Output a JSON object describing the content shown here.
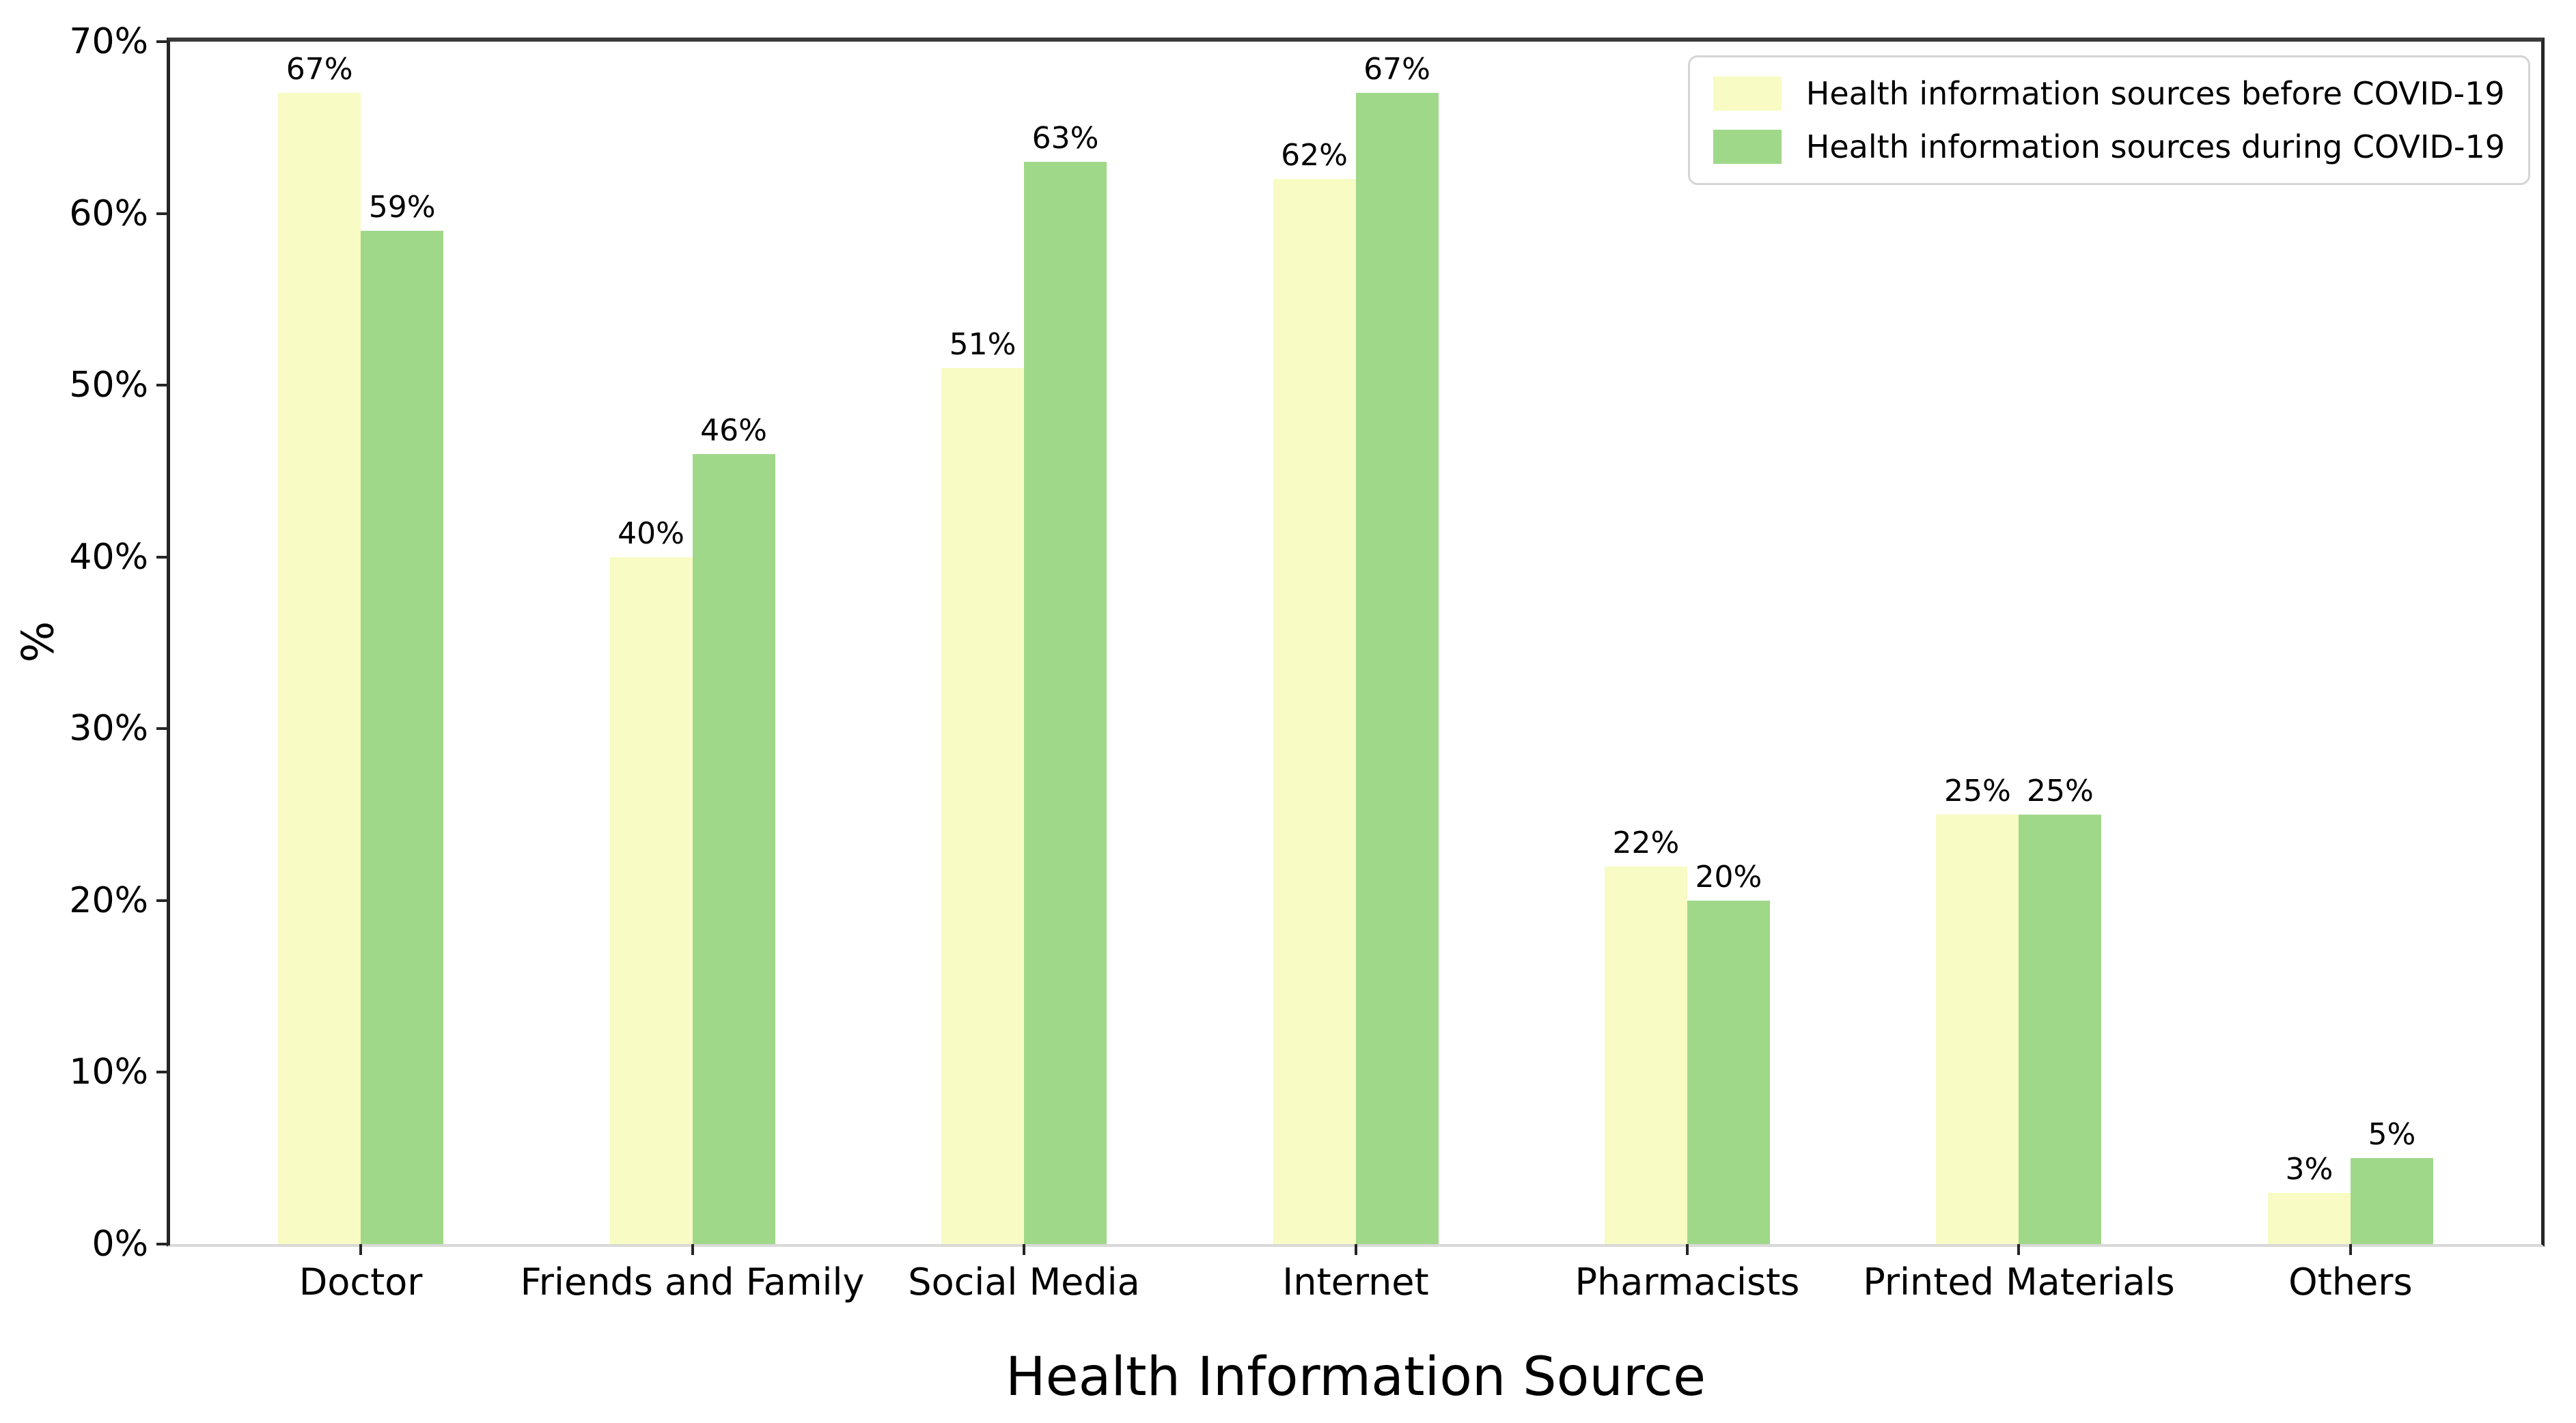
{
  "chart_data": {
    "type": "bar",
    "title": "",
    "xlabel": "Health Information Source",
    "ylabel": "%",
    "ylim": [
      0,
      70
    ],
    "ytick_step": 10,
    "ytick_labels": [
      "0%",
      "10%",
      "20%",
      "30%",
      "40%",
      "50%",
      "60%",
      "70%"
    ],
    "value_suffix": "%",
    "grid": false,
    "legend_position": "top-right",
    "categories": [
      "Doctor",
      "Friends and Family",
      "Social Media",
      "Internet",
      "Pharmacists",
      "Printed Materials",
      "Others"
    ],
    "series": [
      {
        "name": "Health information sources before COVID-19",
        "color": "#f8fbc3",
        "values": [
          67,
          40,
          51,
          62,
          22,
          25,
          3
        ]
      },
      {
        "name": "Health information sources during COVID-19",
        "color": "#a0d88a",
        "values": [
          59,
          46,
          63,
          67,
          20,
          25,
          5
        ]
      }
    ]
  }
}
